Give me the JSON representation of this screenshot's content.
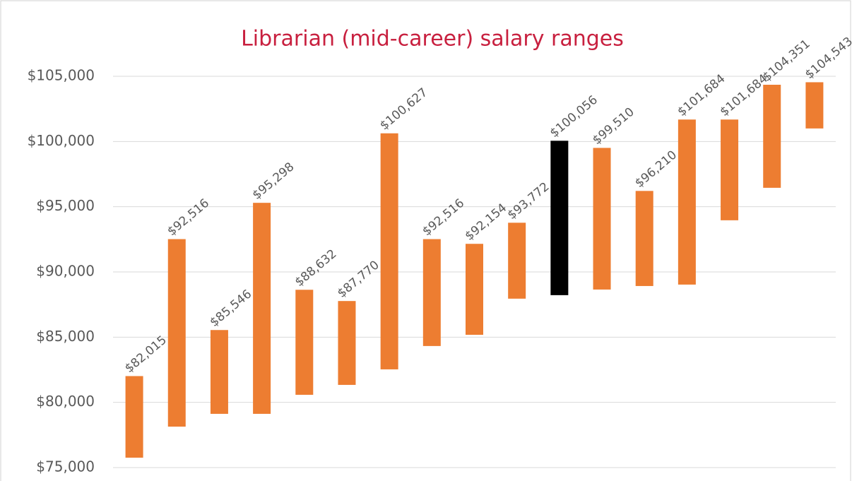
{
  "chart_data": {
    "type": "range-bar",
    "title": "Librarian (mid-career) salary ranges",
    "low": [
      75760,
      78140,
      79120,
      79120,
      80580,
      81340,
      82530,
      84320,
      85180,
      87950,
      88220,
      88650,
      88920,
      89030,
      93960,
      96450,
      101000
    ],
    "high": [
      82015,
      92516,
      85546,
      95298,
      88632,
      87770,
      100627,
      92516,
      92154,
      93772,
      100056,
      99510,
      96210,
      101684,
      101684,
      104351,
      104543
    ],
    "value_labels": [
      "$82,015",
      "$92,516",
      "$85,546",
      "$95,298",
      "$88,632",
      "$87,770",
      "$100,627",
      "$92,516",
      "$92,154",
      "$93,772",
      "$100,056",
      "$99,510",
      "$96,210",
      "$101,684",
      "$101,684",
      "$104,351",
      "$104,543"
    ],
    "colors": [
      "#ed7d31",
      "#ed7d31",
      "#ed7d31",
      "#ed7d31",
      "#ed7d31",
      "#ed7d31",
      "#ed7d31",
      "#ed7d31",
      "#ed7d31",
      "#ed7d31",
      "#000000",
      "#ed7d31",
      "#ed7d31",
      "#ed7d31",
      "#ed7d31",
      "#ed7d31",
      "#ed7d31"
    ],
    "ylim": [
      75000,
      105000
    ],
    "yticks": [
      {
        "value": 75000,
        "label": "$75,000"
      },
      {
        "value": 80000,
        "label": "$80,000"
      },
      {
        "value": 85000,
        "label": "$85,000"
      },
      {
        "value": 90000,
        "label": "$90,000"
      },
      {
        "value": 95000,
        "label": "$95,000"
      },
      {
        "value": 100000,
        "label": "$100,000"
      },
      {
        "value": 105000,
        "label": "$105,000"
      }
    ],
    "grid": true
  }
}
